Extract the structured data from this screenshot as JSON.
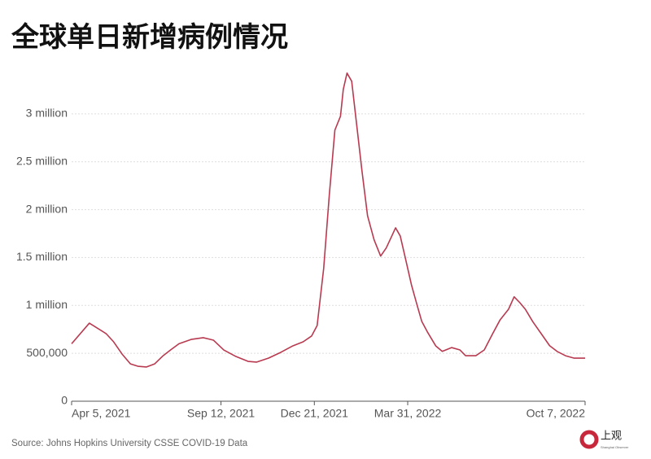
{
  "chart_data": {
    "type": "line",
    "title": "全球单日新增病例情况",
    "source": "Source: Johns Hopkins University CSSE COVID-19 Data",
    "color": "#b83a50",
    "grid": true,
    "x": [
      "2021-04-05",
      "2021-04-24",
      "2021-05-12",
      "2021-05-20",
      "2021-05-29",
      "2021-06-07",
      "2021-06-15",
      "2021-06-24",
      "2021-07-03",
      "2021-07-12",
      "2021-07-20",
      "2021-07-29",
      "2021-08-11",
      "2021-08-24",
      "2021-09-04",
      "2021-09-15",
      "2021-09-28",
      "2021-10-11",
      "2021-10-20",
      "2021-11-02",
      "2021-11-15",
      "2021-11-28",
      "2021-12-09",
      "2021-12-18",
      "2021-12-24",
      "2021-12-31",
      "2022-01-06",
      "2022-01-12",
      "2022-01-18",
      "2022-01-21",
      "2022-01-25",
      "2022-01-30",
      "2022-02-04",
      "2022-02-10",
      "2022-02-16",
      "2022-02-23",
      "2022-03-02",
      "2022-03-08",
      "2022-03-14",
      "2022-03-18",
      "2022-03-23",
      "2022-03-28",
      "2022-04-04",
      "2022-04-10",
      "2022-04-15",
      "2022-04-21",
      "2022-04-30",
      "2022-05-07",
      "2022-05-17",
      "2022-05-26",
      "2022-06-01",
      "2022-06-12",
      "2022-06-21",
      "2022-06-30",
      "2022-07-08",
      "2022-07-17",
      "2022-07-23",
      "2022-07-29",
      "2022-08-04",
      "2022-08-12",
      "2022-08-21",
      "2022-08-30",
      "2022-09-07",
      "2022-09-16",
      "2022-09-25",
      "2022-10-07"
    ],
    "values": [
      600000,
      815000,
      705000,
      620000,
      493000,
      390000,
      365000,
      357000,
      390000,
      475000,
      535000,
      600000,
      645000,
      663000,
      637000,
      535000,
      467000,
      416000,
      408000,
      450000,
      510000,
      578000,
      620000,
      680000,
      790000,
      1385000,
      2150000,
      2830000,
      2975000,
      3255000,
      3425000,
      3340000,
      2915000,
      2405000,
      1935000,
      1685000,
      1515000,
      1600000,
      1725000,
      1810000,
      1725000,
      1515000,
      1215000,
      1005000,
      835000,
      725000,
      578000,
      520000,
      560000,
      535000,
      475000,
      475000,
      535000,
      705000,
      850000,
      960000,
      1090000,
      1030000,
      960000,
      830000,
      705000,
      580000,
      520000,
      475000,
      450000,
      450000
    ],
    "xlim": [
      "2021-04-05",
      "2022-10-07"
    ],
    "xticks": [
      {
        "value": "2021-04-05",
        "label": "Apr 5, 2021"
      },
      {
        "value": "2021-09-12",
        "label": "Sep 12, 2021"
      },
      {
        "value": "2021-12-21",
        "label": "Dec 21, 2021"
      },
      {
        "value": "2022-03-31",
        "label": "Mar 31, 2022"
      },
      {
        "value": "2022-10-07",
        "label": "Oct 7, 2022"
      }
    ],
    "ylim": [
      0,
      3500000
    ],
    "yticks": [
      0,
      {
        "value": 500000,
        "label": "500,000"
      },
      {
        "value": 1000000,
        "label": "1 million"
      },
      {
        "value": 1500000,
        "label": "1.5 million"
      },
      {
        "value": 2000000,
        "label": "2 million"
      },
      {
        "value": 2500000,
        "label": "2.5 million"
      },
      {
        "value": 3000000,
        "label": "3 million"
      }
    ]
  },
  "logo": {
    "name": "上观",
    "subtitle": "Shanghai Observer"
  }
}
